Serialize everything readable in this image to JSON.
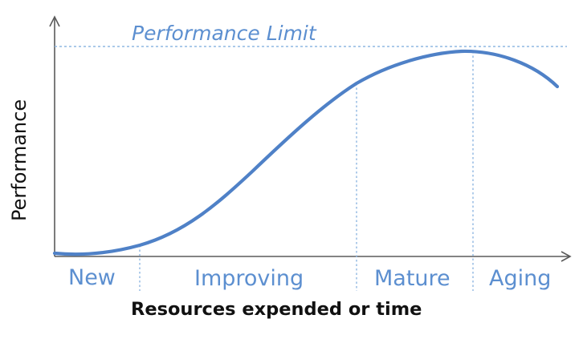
{
  "diagram": {
    "performance_limit_label": "Performance Limit",
    "y_axis_title": "Performance",
    "x_axis_title": "Resources expended or time",
    "phases": [
      {
        "label": "New"
      },
      {
        "label": "Improving"
      },
      {
        "label": "Mature"
      },
      {
        "label": "Aging"
      }
    ],
    "colors": {
      "curve": "#4f81c7",
      "labels": "#5c8fd0",
      "dashed_guides": "#8fb7e2",
      "axes": "#5a5a5a",
      "titles": "#111111"
    }
  }
}
